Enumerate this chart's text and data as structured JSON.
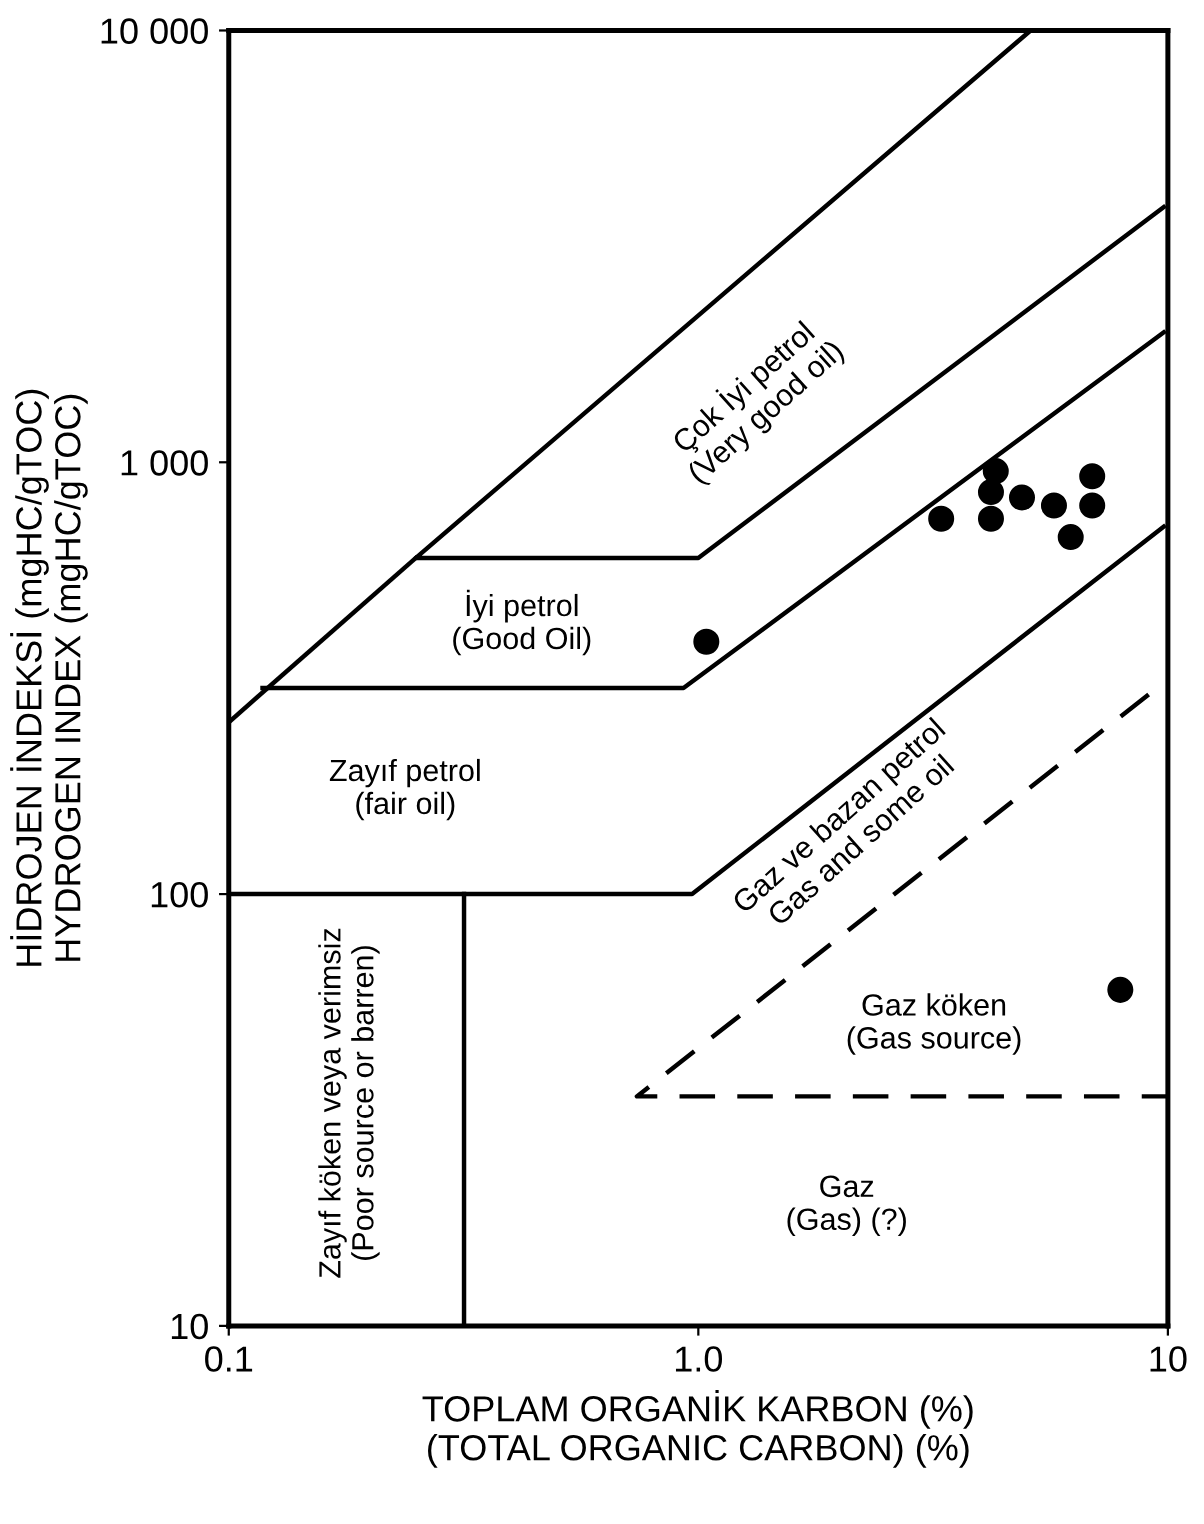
{
  "chart_data": {
    "type": "scatter",
    "xlabel": "TOPLAM ORGANİK KARBON (%)\n(TOTAL ORGANIC CARBON) (%)",
    "ylabel": "HİDROJEN İNDEKSİ (mgHC/gTOC)\nHYDROGEN INDEX (mgHC/gTOC)",
    "log": "xy",
    "grid": false,
    "xlim": [
      0.1,
      10
    ],
    "ylim": [
      10,
      10000
    ],
    "xticks": [
      0.1,
      {
        "value": 1,
        "label": "1.0"
      },
      10
    ],
    "yticks": [
      10,
      100,
      {
        "value": 1000,
        "label": "1 000"
      },
      {
        "value": 10000,
        "label": "10 000"
      }
    ],
    "series": [
      {
        "color": "#000000",
        "marker": "circle",
        "x": [
          1.04,
          3.29,
          4.2,
          4.2,
          4.3,
          4.89,
          5.72,
          6.21,
          6.9,
          6.9,
          7.92
        ],
        "values": [
          384,
          740,
          740,
          853,
          954,
          829,
          794,
          671,
          928,
          794,
          60
        ]
      },
      {
        "type": "line",
        "color": "#000000",
        "line_style": "solid",
        "x": [
          5.1,
          0.25,
          1.0,
          9.8
        ],
        "values": [
          10000,
          600,
          600,
          3900
        ]
      },
      {
        "type": "line",
        "color": "#000000",
        "line_style": "solid",
        "x": [
          0.1,
          0.25
        ],
        "values": [
          250,
          600
        ]
      },
      {
        "type": "line",
        "color": "#000000",
        "line_style": "solid",
        "x": [
          0.118,
          0.93,
          9.8
        ],
        "values": [
          300,
          300,
          2000
        ]
      },
      {
        "type": "line",
        "color": "#000000",
        "line_style": "solid",
        "x": [
          0.1,
          0.97,
          9.8
        ],
        "values": [
          100,
          100,
          710
        ]
      },
      {
        "type": "line",
        "color": "#000000",
        "line_style": "solid",
        "x": [
          0.317,
          0.317
        ],
        "values": [
          10,
          100
        ]
      },
      {
        "type": "line",
        "color": "#000000",
        "line_style": "dashed",
        "x": [
          9.1,
          0.74,
          10
        ],
        "values": [
          290,
          34,
          34
        ]
      }
    ],
    "annotations": [
      "Çok İyi petrol\n(Very good oil)",
      "İyi petrol\n(Good Oil)",
      "Zayıf petrol\n(fair oil)",
      "Gaz ve bazan petrol\nGas and some oil",
      "Gaz köken\n(Gas source)",
      "Gaz\n(Gas) (?)",
      "Zayıf köken veya verimsiz\n(Poor source or barren)"
    ]
  }
}
